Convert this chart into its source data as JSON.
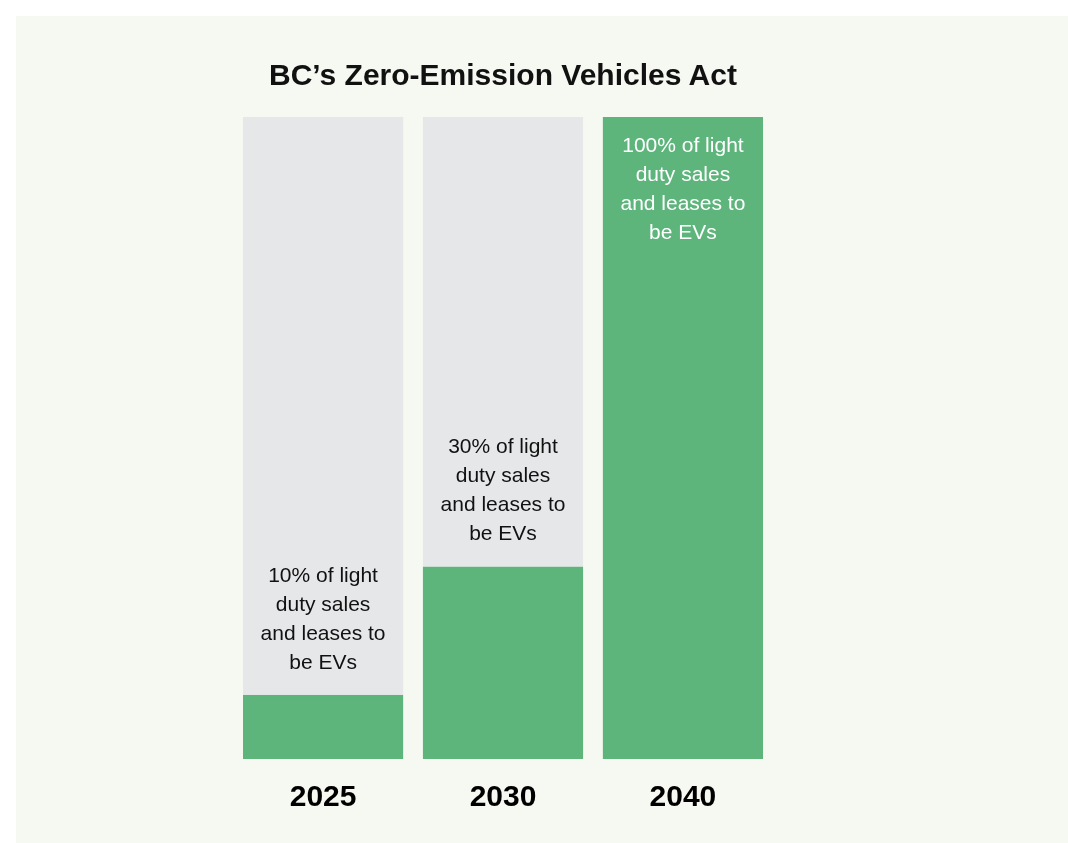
{
  "chart_data": {
    "type": "bar",
    "title": "BC’s Zero-Emission Vehicles Act",
    "categories": [
      "2025",
      "2030",
      "2040"
    ],
    "stacked": true,
    "ylim": [
      0,
      100
    ],
    "tick_labels": "x",
    "grid": false,
    "series": [
      {
        "color": "#5db57c",
        "values": [
          10,
          30,
          100
        ],
        "value_labels": [
          "10% of light duty sales and leases to be EVs",
          "30% of light duty sales and leases to be EVs",
          "100% of light duty sales and leases to be EVs"
        ]
      },
      {
        "color": "#e6e7e9",
        "values": [
          90,
          70,
          0
        ]
      }
    ]
  }
}
